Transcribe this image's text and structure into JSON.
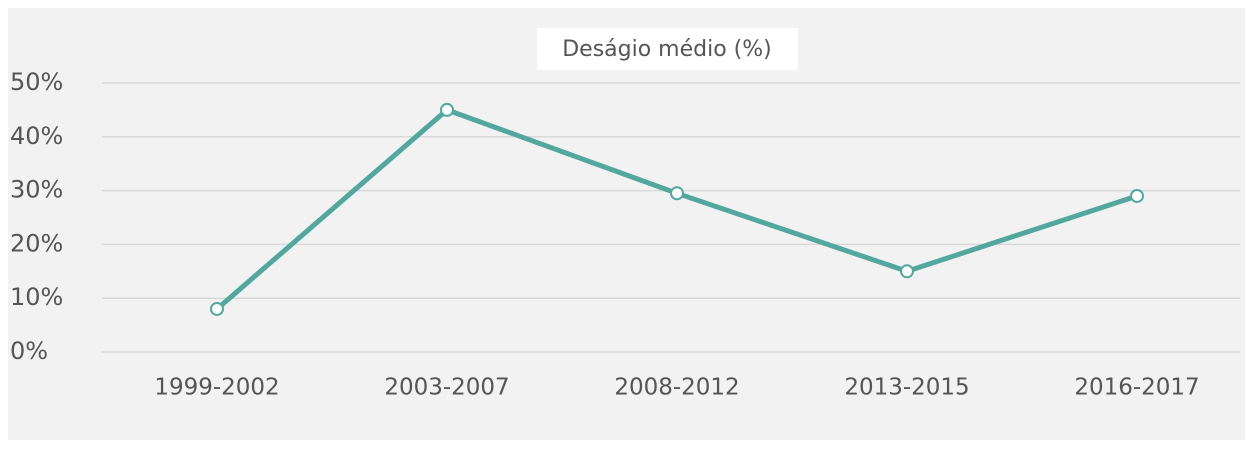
{
  "chart_data": {
    "type": "line",
    "title": "Deságio médio (%)",
    "categories": [
      "1999-2002",
      "2003-2007",
      "2008-2012",
      "2013-2015",
      "2016-2017"
    ],
    "series": [
      {
        "name": "Deságio médio",
        "color": "#52a89d",
        "values": [
          8,
          45,
          29.5,
          15,
          29
        ]
      }
    ],
    "ylim": [
      0,
      50
    ],
    "yticks": [
      {
        "value": 0,
        "label": "0%"
      },
      {
        "value": 10,
        "label": "10%"
      },
      {
        "value": 20,
        "label": "20%"
      },
      {
        "value": 30,
        "label": "30%"
      },
      {
        "value": 40,
        "label": "40%"
      },
      {
        "value": 50,
        "label": "50%"
      }
    ],
    "grid": true
  }
}
